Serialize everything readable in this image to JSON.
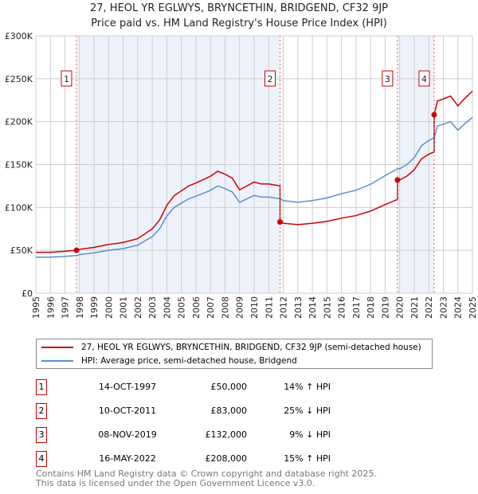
{
  "title": "27, HEOL  YR   EGLWYS, BRYNCETHIN, BRIDGEND, CF32 9JP",
  "subtitle": "Price paid vs. HM Land Registry's House Price Index (HPI)",
  "legend": {
    "property": "27, HEOL  YR   EGLWYS, BRYNCETHIN, BRIDGEND, CF32 9JP (semi-detached house)",
    "hpi": "HPI: Average price, semi-detached house, Bridgend"
  },
  "colors": {
    "property": "#cc0000",
    "hpi": "#5b8fd0",
    "shade": "#eef3fb"
  },
  "sales": [
    {
      "n": "1",
      "date": "14-OCT-1997",
      "price": "£50,000",
      "hpi": "14% ↑ HPI",
      "year": 1997.79,
      "value": 50000,
      "ratio": 1.14
    },
    {
      "n": "2",
      "date": "10-OCT-2011",
      "price": "£83,000",
      "hpi": "25% ↓ HPI",
      "year": 2011.78,
      "value": 83000,
      "ratio": 0.75
    },
    {
      "n": "3",
      "date": "08-NOV-2019",
      "price": "£132,000",
      "hpi": "9% ↓ HPI",
      "year": 2019.85,
      "value": 132000,
      "ratio": 0.91
    },
    {
      "n": "4",
      "date": "16-MAY-2022",
      "price": "£208,000",
      "hpi": "15% ↑ HPI",
      "year": 2022.37,
      "value": 208000,
      "ratio": 1.15
    }
  ],
  "footer": [
    "Contains HM Land Registry data © Crown copyright and database right 2025.",
    "This data is licensed under the Open Government Licence v3.0."
  ],
  "chart_data": {
    "type": "line",
    "xlim": [
      1995,
      2025
    ],
    "ylim": [
      0,
      300000
    ],
    "yticks": [
      {
        "v": 0,
        "label": "£0"
      },
      {
        "v": 50000,
        "label": "£50K"
      },
      {
        "v": 100000,
        "label": "£100K"
      },
      {
        "v": 150000,
        "label": "£150K"
      },
      {
        "v": 200000,
        "label": "£200K"
      },
      {
        "v": 250000,
        "label": "£250K"
      },
      {
        "v": 300000,
        "label": "£300K"
      }
    ],
    "xticks": [
      "1995",
      "1996",
      "1997",
      "1998",
      "1999",
      "2000",
      "2001",
      "2002",
      "2003",
      "2004",
      "2005",
      "2006",
      "2007",
      "2008",
      "2009",
      "2010",
      "2011",
      "2012",
      "2013",
      "2014",
      "2015",
      "2016",
      "2017",
      "2018",
      "2019",
      "2020",
      "2021",
      "2022",
      "2023",
      "2024",
      "2025"
    ],
    "hpi_series": [
      [
        1995,
        42000
      ],
      [
        1996,
        42000
      ],
      [
        1997,
        43000
      ],
      [
        1997.8,
        44000
      ],
      [
        1998,
        45000
      ],
      [
        1999,
        47000
      ],
      [
        2000,
        50000
      ],
      [
        2001,
        52000
      ],
      [
        2002,
        56000
      ],
      [
        2003,
        66000
      ],
      [
        2003.5,
        75000
      ],
      [
        2004,
        90000
      ],
      [
        2004.5,
        100000
      ],
      [
        2005,
        105000
      ],
      [
        2005.5,
        110000
      ],
      [
        2006,
        113000
      ],
      [
        2007,
        120000
      ],
      [
        2007.5,
        125000
      ],
      [
        2008,
        122000
      ],
      [
        2008.5,
        118000
      ],
      [
        2009,
        106000
      ],
      [
        2009.5,
        110000
      ],
      [
        2010,
        114000
      ],
      [
        2010.5,
        112000
      ],
      [
        2011,
        112000
      ],
      [
        2011.8,
        110000
      ],
      [
        2012,
        108000
      ],
      [
        2013,
        106000
      ],
      [
        2014,
        108000
      ],
      [
        2015,
        111000
      ],
      [
        2016,
        116000
      ],
      [
        2017,
        120000
      ],
      [
        2018,
        127000
      ],
      [
        2019,
        137000
      ],
      [
        2019.85,
        145000
      ],
      [
        2020,
        145000
      ],
      [
        2020.5,
        150000
      ],
      [
        2021,
        158000
      ],
      [
        2021.5,
        172000
      ],
      [
        2022,
        178000
      ],
      [
        2022.37,
        181000
      ],
      [
        2022.6,
        195000
      ],
      [
        2023,
        197000
      ],
      [
        2023.5,
        200000
      ],
      [
        2024,
        190000
      ],
      [
        2024.5,
        198000
      ],
      [
        2025,
        205000
      ]
    ]
  }
}
